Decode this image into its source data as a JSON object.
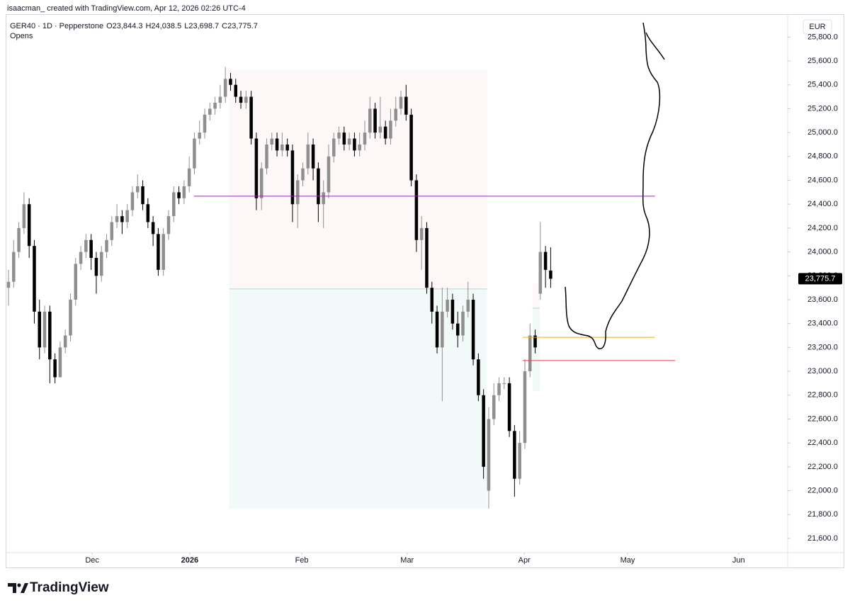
{
  "header": {
    "credit": "isaacman_ created with TradingView.com, Apr 12, 2026 02:26 UTC-4",
    "symbol": "GER40 · 1D · Pepperstone",
    "ohlc": [
      "O23,844.3",
      "H24,038.5",
      "L23,698.7",
      "C23,775.7"
    ],
    "indicator": "Opens",
    "currency": "EUR"
  },
  "footer": {
    "brand": "TradingView"
  },
  "chart_data": {
    "type": "candlestick",
    "up_color": "#8f8f8f",
    "down_color": "#000000",
    "open": [
      23700,
      23750,
      24000,
      24200,
      24400,
      24050,
      23500,
      23200,
      23500,
      23100,
      22950,
      23200,
      23300,
      23600,
      23900,
      24000,
      24100,
      23950,
      23800,
      24000,
      24100,
      24250,
      24300,
      24250,
      24350,
      24500,
      24550,
      24400,
      24250,
      24150,
      23850,
      24150,
      24300,
      24500,
      24450,
      24550,
      24700,
      24950,
      25000,
      25150,
      25200,
      25250,
      25300,
      25450,
      25400,
      25300,
      25250,
      25300,
      24950,
      24450,
      24700,
      24900,
      24950,
      24850,
      24900,
      24850,
      24400,
      24600,
      24700,
      24900,
      24700,
      24400,
      24500,
      24800,
      24950,
      25000,
      24900,
      24950,
      24850,
      24900,
      25000,
      25200,
      25000,
      25050,
      24950,
      25100,
      25200,
      25300,
      25150,
      24600,
      24100,
      24200,
      23700,
      23500,
      23200,
      23500,
      23600,
      23400,
      23300,
      23500,
      23600,
      23100,
      22800,
      22000,
      22600,
      22800,
      22900,
      22900,
      22500,
      22100,
      22400,
      23000,
      23300,
      23650,
      24000,
      23844.3
    ],
    "high": [
      23850,
      24100,
      24250,
      24500,
      24450,
      24100,
      23600,
      23550,
      23550,
      23150,
      23250,
      23350,
      23650,
      23950,
      24050,
      24150,
      24150,
      24000,
      24050,
      24150,
      24300,
      24400,
      24350,
      24400,
      24550,
      24650,
      24600,
      24450,
      24300,
      24200,
      24200,
      24350,
      24550,
      24550,
      24600,
      24800,
      25000,
      25100,
      25200,
      25250,
      25300,
      25400,
      25550,
      25500,
      25450,
      25350,
      25350,
      25350,
      25000,
      24750,
      24950,
      25000,
      25000,
      25000,
      24950,
      24900,
      24650,
      24750,
      25000,
      24950,
      24750,
      24600,
      24900,
      25000,
      25050,
      25050,
      25000,
      25000,
      25000,
      25100,
      25300,
      25250,
      25300,
      25100,
      25200,
      25300,
      25350,
      25400,
      25200,
      24650,
      24300,
      24250,
      23750,
      23550,
      23700,
      23700,
      23650,
      23500,
      23550,
      23750,
      23650,
      23150,
      22850,
      22700,
      22900,
      22950,
      22950,
      22950,
      22550,
      22500,
      23100,
      23400,
      23350,
      24250,
      24050,
      24038.5
    ],
    "low": [
      23550,
      23700,
      23950,
      24150,
      23950,
      23400,
      23100,
      23150,
      22900,
      22900,
      22950,
      23150,
      23250,
      23550,
      23850,
      23950,
      23850,
      23650,
      23750,
      23950,
      24050,
      24200,
      24150,
      24200,
      24300,
      24450,
      24350,
      24200,
      24050,
      23800,
      23800,
      24100,
      24250,
      24400,
      24400,
      24500,
      24650,
      24900,
      24950,
      25100,
      25150,
      25200,
      25250,
      25350,
      25250,
      25200,
      25200,
      24900,
      24350,
      24350,
      24650,
      24850,
      24800,
      24800,
      24800,
      24250,
      24200,
      24550,
      24650,
      24600,
      24250,
      24200,
      24450,
      24750,
      24900,
      24850,
      24850,
      24800,
      24800,
      24850,
      24950,
      24950,
      24950,
      24900,
      24900,
      25050,
      25150,
      25100,
      24550,
      24000,
      23850,
      23650,
      23400,
      23150,
      22750,
      23450,
      23350,
      23200,
      23250,
      23450,
      23050,
      22750,
      22100,
      21850,
      22550,
      22750,
      22850,
      22450,
      21950,
      22050,
      22350,
      22950,
      23150,
      23600,
      23700,
      23698.7
    ],
    "close": [
      23750,
      24000,
      24200,
      24400,
      24050,
      23500,
      23200,
      23500,
      23100,
      22950,
      23200,
      23300,
      23600,
      23900,
      24000,
      24100,
      23950,
      23800,
      24000,
      24100,
      24250,
      24300,
      24250,
      24350,
      24500,
      24550,
      24400,
      24250,
      24150,
      23850,
      24150,
      24300,
      24500,
      24450,
      24550,
      24700,
      24950,
      25000,
      25150,
      25200,
      25250,
      25300,
      25450,
      25400,
      25300,
      25250,
      25300,
      24950,
      24450,
      24700,
      24900,
      24950,
      24850,
      24900,
      24850,
      24400,
      24600,
      24700,
      24900,
      24700,
      24400,
      24500,
      24800,
      24950,
      25000,
      24900,
      24950,
      24850,
      24900,
      25000,
      25200,
      25000,
      25050,
      24950,
      25100,
      25200,
      25300,
      25150,
      24600,
      24100,
      24200,
      23700,
      23500,
      23200,
      23500,
      23600,
      23400,
      23300,
      23500,
      23600,
      23100,
      22800,
      22200,
      22600,
      22800,
      22900,
      22900,
      22500,
      22100,
      22400,
      23000,
      23300,
      23200,
      24000,
      23850,
      23775.7
    ],
    "last_price_label": "23,775.7",
    "xlim": [
      -0.55,
      150.9
    ],
    "xticks": [
      {
        "value": 16.2,
        "label": "Dec"
      },
      {
        "value": 35.1,
        "label": "2026"
      },
      {
        "value": 56.8,
        "label": "Feb"
      },
      {
        "value": 77.2,
        "label": "Mar"
      },
      {
        "value": 99.9,
        "label": "Apr"
      },
      {
        "value": 119.9,
        "label": "May"
      },
      {
        "value": 141.4,
        "label": "Jun"
      }
    ],
    "ylim": [
      21481,
      25992
    ],
    "yticks": [
      {
        "value": 21600,
        "label": "21,600.0"
      },
      {
        "value": 21800,
        "label": "21,800.0"
      },
      {
        "value": 22000,
        "label": "22,000.0"
      },
      {
        "value": 22200,
        "label": "22,200.0"
      },
      {
        "value": 22400,
        "label": "22,400.0"
      },
      {
        "value": 22600,
        "label": "22,600.0"
      },
      {
        "value": 22800,
        "label": "22,800.0"
      },
      {
        "value": 23000,
        "label": "23,000.0"
      },
      {
        "value": 23200,
        "label": "23,200.0"
      },
      {
        "value": 23400,
        "label": "23,400.0"
      },
      {
        "value": 23600,
        "label": "23,600.0"
      },
      {
        "value": 23800,
        "label": "23,800.0"
      },
      {
        "value": 24000,
        "label": "24,000.0"
      },
      {
        "value": 24200,
        "label": "24,200.0"
      },
      {
        "value": 24400,
        "label": "24,400.0"
      },
      {
        "value": 24600,
        "label": "24,600.0"
      },
      {
        "value": 24800,
        "label": "24,800.0"
      },
      {
        "value": 25000,
        "label": "25,000.0"
      },
      {
        "value": 25200,
        "label": "25,200.0"
      },
      {
        "value": 25400,
        "label": "25,400.0"
      },
      {
        "value": 25600,
        "label": "25,600.0"
      },
      {
        "value": 25800,
        "label": "25,800.0"
      }
    ],
    "zones": [
      {
        "start": 42.7,
        "end": 92.7,
        "top": 25523,
        "entry": 23690,
        "bottom": 21850
      },
      {
        "start": 101.5,
        "end": 102.9,
        "top": 23736,
        "entry": 23529,
        "bottom": 22834
      }
    ],
    "hlines": [
      {
        "value": 24467,
        "start": 35.9,
        "end": 125.2,
        "color": "#9c27b0"
      },
      {
        "value": 23285,
        "start": 99.6,
        "end": 125.2,
        "color": "#f5a623"
      },
      {
        "value": 23090,
        "start": 99.6,
        "end": 129.1,
        "color": "#f23645"
      }
    ]
  }
}
